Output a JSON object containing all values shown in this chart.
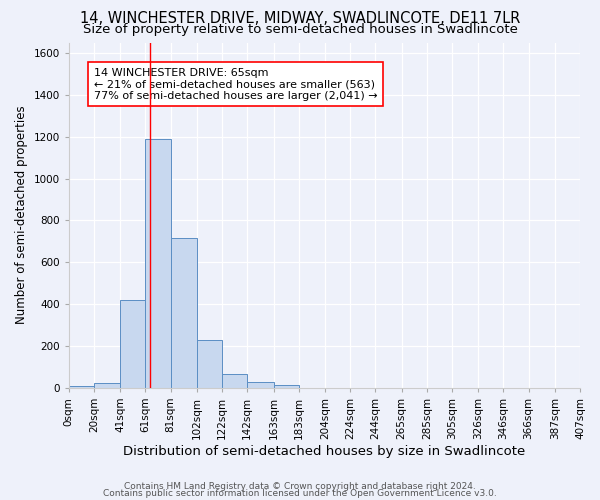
{
  "title": "14, WINCHESTER DRIVE, MIDWAY, SWADLINCOTE, DE11 7LR",
  "subtitle": "Size of property relative to semi-detached houses in Swadlincote",
  "xlabel": "Distribution of semi-detached houses by size in Swadlincote",
  "ylabel": "Number of semi-detached properties",
  "bin_labels": [
    "0sqm",
    "20sqm",
    "41sqm",
    "61sqm",
    "81sqm",
    "102sqm",
    "122sqm",
    "142sqm",
    "163sqm",
    "183sqm",
    "204sqm",
    "224sqm",
    "244sqm",
    "265sqm",
    "285sqm",
    "305sqm",
    "326sqm",
    "346sqm",
    "366sqm",
    "387sqm",
    "407sqm"
  ],
  "bar_heights": [
    10,
    25,
    420,
    1190,
    715,
    230,
    65,
    28,
    12,
    0,
    0,
    0,
    0,
    0,
    0,
    0,
    0,
    0,
    0,
    0
  ],
  "bar_color": "#c8d8ef",
  "bar_edge_color": "#5b8ec4",
  "property_line_x": 65,
  "property_line_color": "red",
  "annotation_text": "14 WINCHESTER DRIVE: 65sqm\n← 21% of semi-detached houses are smaller (563)\n77% of semi-detached houses are larger (2,041) →",
  "annotation_box_color": "white",
  "annotation_box_edge_color": "red",
  "ylim": [
    0,
    1650
  ],
  "yticks": [
    0,
    200,
    400,
    600,
    800,
    1000,
    1200,
    1400,
    1600
  ],
  "background_color": "#eef1fa",
  "grid_color": "white",
  "footer_line1": "Contains HM Land Registry data © Crown copyright and database right 2024.",
  "footer_line2": "Contains public sector information licensed under the Open Government Licence v3.0.",
  "title_fontsize": 10.5,
  "subtitle_fontsize": 9.5,
  "xlabel_fontsize": 9.5,
  "ylabel_fontsize": 8.5,
  "tick_fontsize": 7.5,
  "annotation_fontsize": 8,
  "footer_fontsize": 6.5
}
